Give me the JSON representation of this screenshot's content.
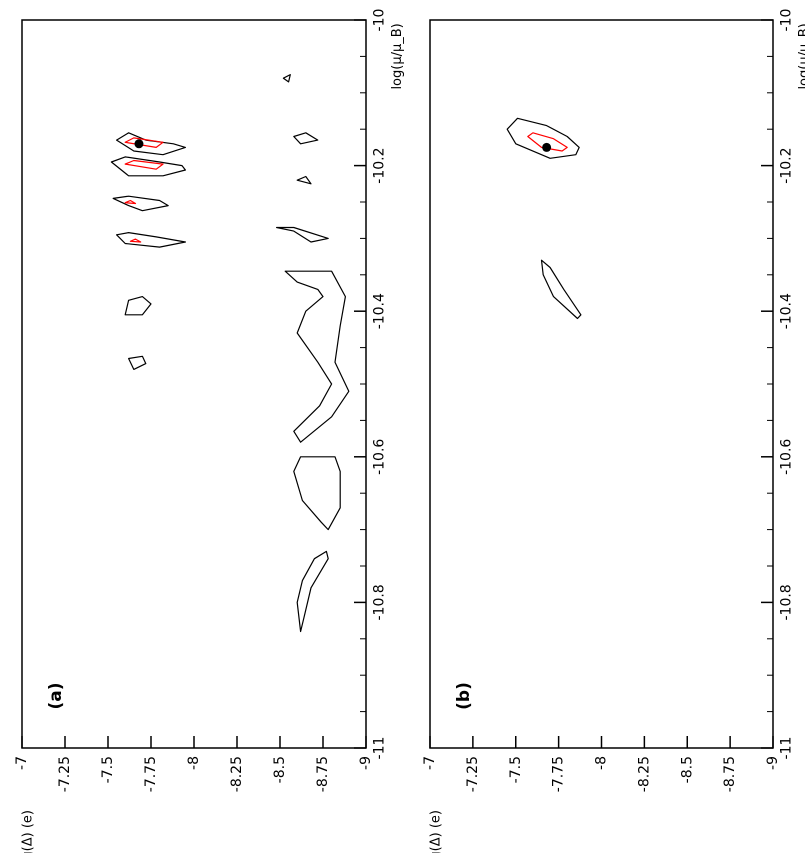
{
  "figure": {
    "orientation": "rotated 90 degrees counter-clockwise",
    "colors": {
      "frame": "#000000",
      "contour_outer": "#000000",
      "contour_inner": "#ff0000",
      "marker": "#000000"
    }
  },
  "chart_data": [
    {
      "type": "contour",
      "panel_label": "(a)",
      "xlabel": "log(μ/μ_B)",
      "ylabel": "log(Δ) (e)",
      "xlim": [
        -11,
        -10
      ],
      "ylim": [
        -9,
        -7
      ],
      "x_ticks": [
        "-11",
        "-10.8",
        "-10.6",
        "-10.4",
        "-10.2",
        "-10"
      ],
      "y_ticks": [
        "-7",
        "-7.25",
        "-7.5",
        "-7.75",
        "-8",
        "-8.25",
        "-8.5",
        "-8.75",
        "-9"
      ],
      "outer_contours": [
        [
          [
            -10.18,
            -7.65
          ],
          [
            -10.165,
            -7.55
          ],
          [
            -10.155,
            -7.62
          ],
          [
            -10.165,
            -7.72
          ],
          [
            -10.17,
            -7.88
          ],
          [
            -10.175,
            -7.95
          ],
          [
            -10.185,
            -7.82
          ],
          [
            -10.18,
            -7.65
          ]
        ],
        [
          [
            -10.214,
            -7.62
          ],
          [
            -10.195,
            -7.52
          ],
          [
            -10.188,
            -7.6
          ],
          [
            -10.195,
            -7.8
          ],
          [
            -10.2,
            -7.93
          ],
          [
            -10.206,
            -7.95
          ],
          [
            -10.214,
            -7.82
          ],
          [
            -10.214,
            -7.62
          ]
        ],
        [
          [
            -10.255,
            -7.62
          ],
          [
            -10.245,
            -7.53
          ],
          [
            -10.242,
            -7.62
          ],
          [
            -10.248,
            -7.8
          ],
          [
            -10.255,
            -7.85
          ],
          [
            -10.262,
            -7.7
          ],
          [
            -10.255,
            -7.62
          ]
        ],
        [
          [
            -10.307,
            -7.6
          ],
          [
            -10.295,
            -7.55
          ],
          [
            -10.292,
            -7.62
          ],
          [
            -10.298,
            -7.78
          ],
          [
            -10.305,
            -7.95
          ],
          [
            -10.312,
            -7.8
          ],
          [
            -10.307,
            -7.6
          ]
        ],
        [
          [
            -10.405,
            -7.6
          ],
          [
            -10.385,
            -7.62
          ],
          [
            -10.38,
            -7.7
          ],
          [
            -10.39,
            -7.75
          ],
          [
            -10.405,
            -7.7
          ],
          [
            -10.405,
            -7.6
          ]
        ],
        [
          [
            -10.48,
            -7.65
          ],
          [
            -10.465,
            -7.62
          ],
          [
            -10.462,
            -7.7
          ],
          [
            -10.472,
            -7.72
          ],
          [
            -10.48,
            -7.65
          ]
        ],
        [
          [
            -10.345,
            -8.53
          ],
          [
            -10.36,
            -8.6
          ],
          [
            -10.37,
            -8.72
          ],
          [
            -10.38,
            -8.75
          ],
          [
            -10.4,
            -8.65
          ],
          [
            -10.43,
            -8.6
          ],
          [
            -10.47,
            -8.72
          ],
          [
            -10.5,
            -8.8
          ],
          [
            -10.53,
            -8.73
          ],
          [
            -10.565,
            -8.58
          ],
          [
            -10.58,
            -8.62
          ],
          [
            -10.545,
            -8.8
          ],
          [
            -10.51,
            -8.9
          ],
          [
            -10.47,
            -8.82
          ],
          [
            -10.42,
            -8.85
          ],
          [
            -10.38,
            -8.88
          ],
          [
            -10.345,
            -8.8
          ],
          [
            -10.345,
            -8.53
          ]
        ],
        [
          [
            -10.6,
            -8.62
          ],
          [
            -10.62,
            -8.58
          ],
          [
            -10.66,
            -8.63
          ],
          [
            -10.69,
            -8.74
          ],
          [
            -10.7,
            -8.78
          ],
          [
            -10.67,
            -8.85
          ],
          [
            -10.62,
            -8.85
          ],
          [
            -10.6,
            -8.82
          ],
          [
            -10.6,
            -8.62
          ]
        ],
        [
          [
            -10.84,
            -8.62
          ],
          [
            -10.8,
            -8.6
          ],
          [
            -10.77,
            -8.63
          ],
          [
            -10.74,
            -8.7
          ],
          [
            -10.73,
            -8.77
          ],
          [
            -10.74,
            -8.78
          ],
          [
            -10.78,
            -8.68
          ],
          [
            -10.82,
            -8.64
          ],
          [
            -10.84,
            -8.62
          ]
        ],
        [
          [
            -10.285,
            -8.48
          ],
          [
            -10.29,
            -8.58
          ],
          [
            -10.305,
            -8.68
          ],
          [
            -10.3,
            -8.78
          ],
          [
            -10.285,
            -8.58
          ],
          [
            -10.285,
            -8.48
          ]
        ],
        [
          [
            -10.16,
            -8.58
          ],
          [
            -10.155,
            -8.65
          ],
          [
            -10.165,
            -8.72
          ],
          [
            -10.17,
            -8.62
          ],
          [
            -10.16,
            -8.58
          ]
        ],
        [
          [
            -10.22,
            -8.6
          ],
          [
            -10.215,
            -8.65
          ],
          [
            -10.225,
            -8.68
          ],
          [
            -10.22,
            -8.6
          ]
        ],
        [
          [
            -10.08,
            -8.52
          ],
          [
            -10.075,
            -8.56
          ],
          [
            -10.085,
            -8.55
          ],
          [
            -10.08,
            -8.52
          ]
        ]
      ],
      "inner_contours": [
        [
          [
            -10.168,
            -7.6
          ],
          [
            -10.162,
            -7.65
          ],
          [
            -10.168,
            -7.82
          ],
          [
            -10.175,
            -7.78
          ],
          [
            -10.168,
            -7.6
          ]
        ],
        [
          [
            -10.198,
            -7.6
          ],
          [
            -10.193,
            -7.65
          ],
          [
            -10.198,
            -7.82
          ],
          [
            -10.205,
            -7.78
          ],
          [
            -10.198,
            -7.6
          ]
        ],
        [
          [
            -10.251,
            -7.6
          ],
          [
            -10.248,
            -7.63
          ],
          [
            -10.252,
            -7.66
          ],
          [
            -10.251,
            -7.6
          ]
        ],
        [
          [
            -10.304,
            -7.63
          ],
          [
            -10.301,
            -7.66
          ],
          [
            -10.305,
            -7.69
          ],
          [
            -10.304,
            -7.63
          ]
        ]
      ],
      "best_fit": {
        "x": -10.17,
        "y": -7.68
      }
    },
    {
      "type": "contour",
      "panel_label": "(b)",
      "xlabel": "log(μ/μ_B)",
      "ylabel": "log(Δ) (e)",
      "xlim": [
        -11,
        -10
      ],
      "ylim": [
        -9,
        -7
      ],
      "x_ticks": [
        "-11",
        "-10.8",
        "-10.6",
        "-10.4",
        "-10.2",
        "-10"
      ],
      "y_ticks": [
        "-7",
        "-7.25",
        "-7.5",
        "-7.75",
        "-8",
        "-8.25",
        "-8.5",
        "-8.75",
        "-9"
      ],
      "outer_contours": [
        [
          [
            -10.135,
            -7.51
          ],
          [
            -10.15,
            -7.45
          ],
          [
            -10.17,
            -7.5
          ],
          [
            -10.19,
            -7.7
          ],
          [
            -10.185,
            -7.85
          ],
          [
            -10.175,
            -7.87
          ],
          [
            -10.16,
            -7.8
          ],
          [
            -10.145,
            -7.68
          ],
          [
            -10.135,
            -7.51
          ]
        ],
        [
          [
            -10.33,
            -7.65
          ],
          [
            -10.35,
            -7.66
          ],
          [
            -10.38,
            -7.72
          ],
          [
            -10.41,
            -7.86
          ],
          [
            -10.405,
            -7.88
          ],
          [
            -10.37,
            -7.78
          ],
          [
            -10.34,
            -7.7
          ],
          [
            -10.33,
            -7.65
          ]
        ]
      ],
      "inner_contours": [
        [
          [
            -10.155,
            -7.6
          ],
          [
            -10.16,
            -7.57
          ],
          [
            -10.175,
            -7.65
          ],
          [
            -10.18,
            -7.77
          ],
          [
            -10.175,
            -7.8
          ],
          [
            -10.163,
            -7.72
          ],
          [
            -10.155,
            -7.6
          ]
        ]
      ],
      "best_fit": {
        "x": -10.175,
        "y": -7.68
      }
    }
  ]
}
